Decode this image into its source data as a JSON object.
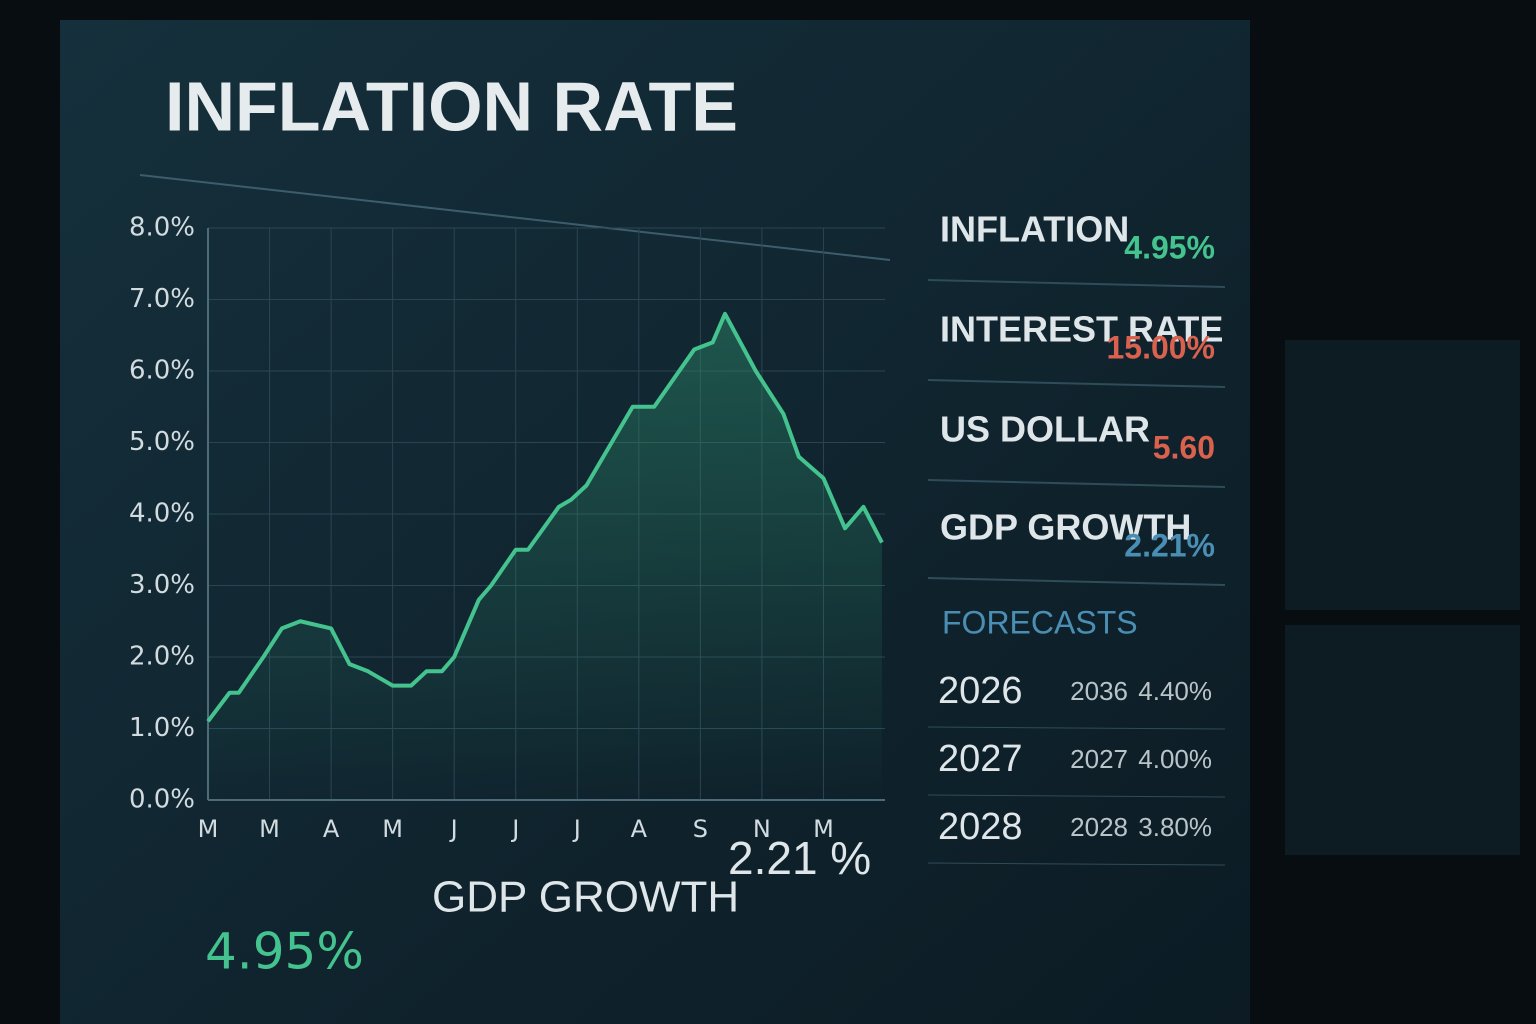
{
  "chart_data": {
    "type": "line",
    "title": "INFLATION RATE",
    "x": [
      0,
      0.35,
      0.5,
      0.9,
      1.2,
      1.5,
      2.0,
      2.3,
      2.6,
      3.0,
      3.3,
      3.55,
      3.8,
      4.0,
      4.4,
      4.6,
      5.0,
      5.2,
      5.7,
      5.9,
      6.15,
      6.9,
      7.25,
      7.9,
      8.2,
      8.4,
      8.9,
      9.35,
      9.6,
      10.0,
      10.35,
      10.65,
      10.95
    ],
    "values": [
      1.1,
      1.5,
      1.5,
      2.0,
      2.4,
      2.5,
      2.4,
      1.9,
      1.8,
      1.6,
      1.6,
      1.8,
      1.8,
      2.0,
      2.8,
      3.0,
      3.5,
      3.5,
      4.1,
      4.2,
      4.4,
      5.5,
      5.5,
      6.3,
      6.4,
      6.8,
      6.0,
      5.4,
      4.8,
      4.5,
      3.8,
      4.1,
      3.6
    ],
    "color": "#45c38f",
    "xlim": [
      0,
      11
    ],
    "xticks": [
      {
        "value": 0,
        "label": "M"
      },
      {
        "value": 1,
        "label": "M"
      },
      {
        "value": 2,
        "label": "A"
      },
      {
        "value": 3,
        "label": "M"
      },
      {
        "value": 4,
        "label": "J"
      },
      {
        "value": 5,
        "label": "J"
      },
      {
        "value": 6,
        "label": "J"
      },
      {
        "value": 7,
        "label": "A"
      },
      {
        "value": 8,
        "label": "S"
      },
      {
        "value": 9,
        "label": "N"
      },
      {
        "value": 10,
        "label": "M"
      }
    ],
    "ylim": [
      0,
      8
    ],
    "yticks": [
      {
        "value": 0,
        "label": "0.0%"
      },
      {
        "value": 1,
        "label": "1.0%"
      },
      {
        "value": 2,
        "label": "2.0%"
      },
      {
        "value": 3,
        "label": "3.0%"
      },
      {
        "value": 4,
        "label": "4.0%"
      },
      {
        "value": 5,
        "label": "5.0%"
      },
      {
        "value": 6,
        "label": "6.0%"
      },
      {
        "value": 7,
        "label": "7.0%"
      },
      {
        "value": 8,
        "label": "8.0%"
      }
    ],
    "grid": true
  },
  "summary": {
    "value": "4.95%",
    "label": "GDP GROWTH",
    "gdp": "2.21 %"
  },
  "panel": {
    "rows": [
      {
        "label": "INFLATION",
        "value": "4.95%",
        "color": "#45c38f"
      },
      {
        "label": "INTEREST RATE",
        "value": "15.00%",
        "color": "#d9614e"
      },
      {
        "label": "US DOLLAR",
        "value": "5.60",
        "color": "#d9614e"
      },
      {
        "label": "GDP GROWTH",
        "value": "2.21%",
        "color": "#4a8fb3"
      }
    ],
    "forecasts": {
      "title": "FORECASTS",
      "rows": [
        [
          "2026",
          "2036",
          "4.40%"
        ],
        [
          "2027",
          "2027",
          "4.00%"
        ],
        [
          "2028",
          "2028",
          "3.80%"
        ]
      ]
    }
  }
}
